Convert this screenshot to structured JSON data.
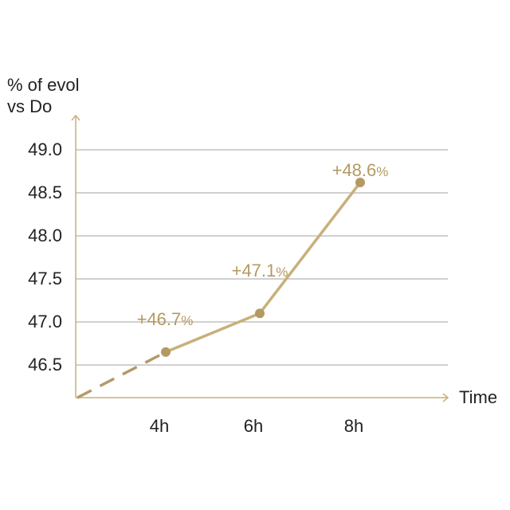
{
  "chart_data": {
    "type": "line",
    "ylabel": [
      "% of evol",
      "vs Do"
    ],
    "xlabel": "Time",
    "categories": [
      "4h",
      "6h",
      "8h"
    ],
    "y_ticks": [
      "46.5",
      "47.0",
      "47.5",
      "48.0",
      "48.5",
      "49.0"
    ],
    "ylim": [
      46.1,
      49.2
    ],
    "series": [
      {
        "values": [
          46.65,
          47.1,
          48.62
        ],
        "labels": [
          {
            "num": "+46.7",
            "pct": "%"
          },
          {
            "num": "+47.1",
            "pct": "%"
          },
          {
            "num": "+48.6",
            "pct": "%"
          }
        ],
        "extrapolated_start": {
          "x": "3h",
          "y": 46.12
        }
      }
    ],
    "grid": true,
    "legend": "none",
    "colors": {
      "line": "#c8b07a",
      "label": "#b49a62",
      "axis": "#c8b07a",
      "grid": "#b5b5b5"
    }
  }
}
